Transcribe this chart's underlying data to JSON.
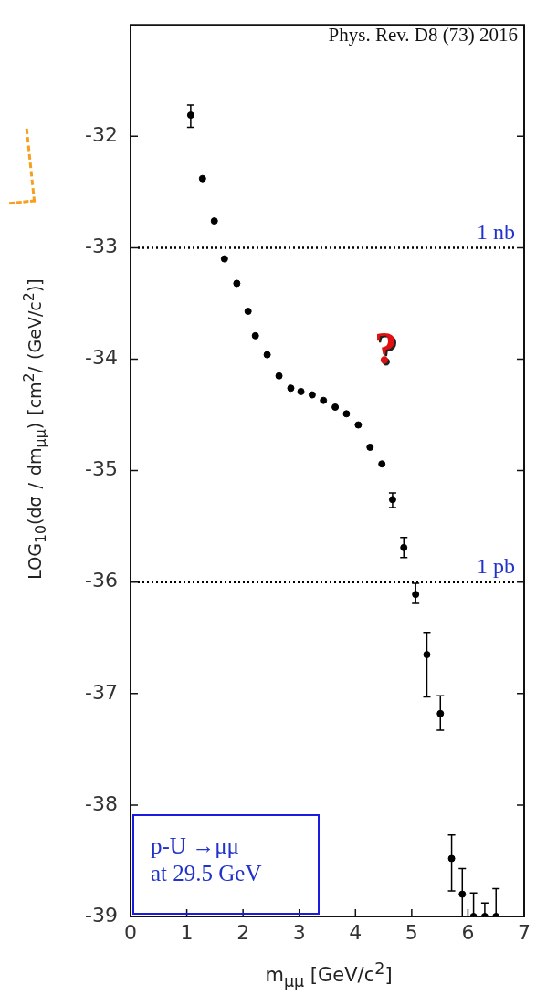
{
  "chart_data": {
    "type": "scatter",
    "xlabel": "m$_{μμ}$ [GeV/c$^{2}$]",
    "ylabel": "LOG$_{10}$(dσ / dm$_{μμ}$)   [cm$^{2}$/ (GeV/c$^{2}$)]",
    "x": [
      1.07,
      1.28,
      1.49,
      1.67,
      1.89,
      2.09,
      2.22,
      2.43,
      2.64,
      2.85,
      3.03,
      3.23,
      3.43,
      3.64,
      3.84,
      4.05,
      4.26,
      4.47,
      4.66,
      4.86,
      5.07,
      5.27,
      5.51,
      5.71,
      5.9,
      6.1,
      6.3,
      6.5
    ],
    "series": [
      {
        "color": "#000000",
        "values": [
          -31.81,
          -32.38,
          -32.76,
          -33.1,
          -33.32,
          -33.57,
          -33.79,
          -33.96,
          -34.15,
          -34.26,
          -34.29,
          -34.32,
          -34.37,
          -34.43,
          -34.49,
          -34.59,
          -34.79,
          -34.94,
          -35.26,
          -35.69,
          -36.11,
          -36.65,
          -37.18,
          -38.48,
          -38.8,
          -39,
          -39,
          -39
        ],
        "errors": [
          [
            -31.92,
            -31.72
          ],
          null,
          null,
          null,
          null,
          null,
          null,
          null,
          null,
          null,
          null,
          null,
          null,
          null,
          null,
          null,
          null,
          null,
          [
            -35.33,
            -35.2
          ],
          [
            -35.78,
            -35.6
          ],
          [
            -36.19,
            -36.01
          ],
          [
            -37.03,
            -36.45
          ],
          [
            -37.33,
            -37.02
          ],
          [
            -38.77,
            -38.27
          ],
          [
            -39,
            -38.57
          ],
          [
            -39,
            -38.79
          ],
          [
            -39,
            -38.88
          ],
          [
            -39,
            -38.75
          ]
        ]
      }
    ],
    "marker": "circle",
    "xlim": [
      0,
      7
    ],
    "xticks": [
      0,
      1,
      2,
      3,
      4,
      5,
      6,
      7
    ],
    "ylim": [
      -39,
      -31
    ],
    "yticks": [
      -39,
      -38,
      -37,
      -36,
      -35,
      -34,
      -33,
      -32
    ],
    "grid": false,
    "legend": false,
    "ref_lines": [
      {
        "axis": "y",
        "value": -33,
        "label": "1 nb",
        "color": "#000000",
        "line_style": "dotted"
      },
      {
        "axis": "y",
        "value": -36,
        "label": "1 pb",
        "color": "#000000",
        "line_style": "dotted"
      }
    ],
    "annotations": [
      "Phys. Rev. D8 (73) 2016",
      "?",
      "p-U →μμ\nat 29.5 GeV"
    ]
  }
}
